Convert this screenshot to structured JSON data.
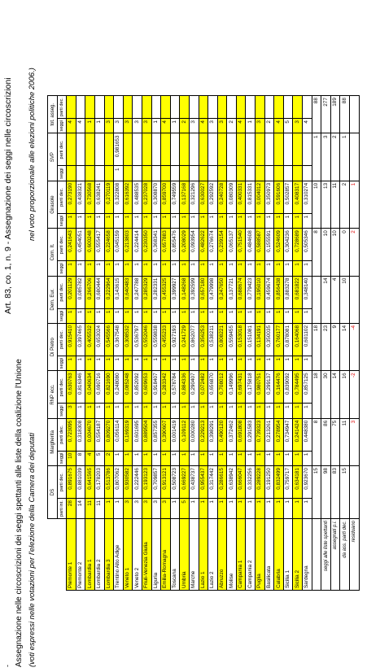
{
  "page": {
    "marker": "-",
    "title_left": "Assegnazione nelle circoscrizioni dei seggi spettanti alle liste della coalizione l'Unione",
    "subtitle_left": "(voti espressi nelle votazioni per l'elezione della Camera dei deputati",
    "title_right": "Art. 83, co. 1, n. 9 - Assegnazione dei seggi nelle circoscrizioni",
    "subtitle_right": "nel voto proporzionale alle elezioni politiche 2006.)"
  },
  "columns": [
    {
      "name": "DS",
      "sub1": "parti int.",
      "sub2": "parti dec."
    },
    {
      "name": "Margherita",
      "sub1": "seggi",
      "sub2": "parti dec."
    },
    {
      "name": "RNP ecc.",
      "sub1": "seggi",
      "sub2": "parti dec."
    },
    {
      "name": "Di Pietro",
      "sub1": "seggi",
      "sub2": "parti dec."
    },
    {
      "name": "Dem. Eur.",
      "sub1": "seggi",
      "sub2": "parti dec."
    },
    {
      "name": "Com. It.",
      "sub1": "seggi",
      "sub2": "parti dec."
    },
    {
      "name": "Girasole",
      "sub1": "seggi",
      "sub2": "parti dec."
    },
    {
      "name": "SVP",
      "sub1": "seggi",
      "sub2": "parti dec."
    },
    {
      "name": "tot. asseg.",
      "sub1": "seggi",
      "sub2": "parti dec."
    }
  ],
  "rows": [
    {
      "region": "Piemonte 1",
      "c": [
        [
          "28",
          "0,891675"
        ],
        [
          "10",
          "0,723095"
        ],
        [
          "3",
          "0,630763"
        ],
        [
          "1",
          "0,915410"
        ],
        [
          "1",
          "0,201129"
        ],
        [
          "1",
          "0,241643"
        ],
        [
          "1",
          "0,273190"
        ],
        [
          "",
          ""
        ],
        [
          "4",
          ""
        ]
      ]
    },
    {
      "region": "Piemonte 2",
      "c": [
        [
          "14",
          "0,881039"
        ],
        [
          "8",
          "0,318308"
        ],
        [
          "1",
          "0,816346"
        ],
        [
          "1",
          "0,397465"
        ],
        [
          "1",
          "0,085782"
        ],
        [
          "1",
          "0,454051"
        ],
        [
          "1",
          "0,438321"
        ],
        [
          "",
          ""
        ],
        [
          "4",
          ""
        ]
      ]
    },
    {
      "region": "Lombardia 1",
      "c": [
        [
          "11",
          "0,641565"
        ],
        [
          "4",
          "0,004670"
        ],
        [
          "1",
          "0,040634"
        ],
        [
          "1",
          "0,405532"
        ],
        [
          "1",
          "0,266706"
        ],
        [
          "1",
          "0,600248"
        ],
        [
          "1",
          "0,730568"
        ],
        [
          "",
          ""
        ],
        [
          "1",
          ""
        ]
      ]
    },
    {
      "region": "Lombardia 2",
      "c": [
        [
          "11",
          "0,178203"
        ],
        [
          "5",
          "0,554187"
        ],
        [
          "1",
          "0,690716"
        ],
        [
          "1",
          "0,653024"
        ],
        [
          "1",
          "0,680444"
        ],
        [
          "1",
          "0,555417"
        ],
        [
          "1",
          "0,638241"
        ],
        [
          "",
          ""
        ],
        [
          "1",
          ""
        ]
      ]
    },
    {
      "region": "Lombardia 3",
      "c": [
        [
          "1",
          "0,513786"
        ],
        [
          "2",
          "0,809270"
        ],
        [
          "1",
          "0,821690"
        ],
        [
          "1",
          "0,545566"
        ],
        [
          "1",
          "0,222964"
        ],
        [
          "1",
          "0,224658"
        ],
        [
          "1",
          "0,270119"
        ],
        [
          "",
          ""
        ],
        [
          "3",
          ""
        ]
      ]
    },
    {
      "region": "Trentino Alto Adige",
      "c": [
        [
          "1",
          "0,807062"
        ],
        [
          "1",
          "0,056114"
        ],
        [
          "1",
          "0,248080"
        ],
        [
          "1",
          "0,367548"
        ],
        [
          "1",
          "0,143615"
        ],
        [
          "1",
          "0,045159"
        ],
        [
          "1",
          "0,322808"
        ],
        [
          "1",
          "0,981653"
        ],
        [
          "3",
          ""
        ]
      ]
    },
    {
      "region": "Veneto 1",
      "c": [
        [
          "3",
          "0,930582"
        ],
        [
          "1",
          "0,169319"
        ],
        [
          "1",
          "0,085248"
        ],
        [
          "1",
          "0,308532"
        ],
        [
          "1",
          "0,640483"
        ],
        [
          "1",
          "0,213803"
        ],
        [
          "1",
          "0,616392"
        ],
        [
          "",
          ""
        ],
        [
          "3",
          ""
        ]
      ]
    },
    {
      "region": "Veneto 2",
      "c": [
        [
          "3",
          "0,222446"
        ],
        [
          "1",
          "0,601695"
        ],
        [
          "1",
          "0,852092"
        ],
        [
          "1",
          "0,536797"
        ],
        [
          "1",
          "0,247788"
        ],
        [
          "1",
          "0,224414"
        ],
        [
          "1",
          "0,488535"
        ],
        [
          "",
          ""
        ],
        [
          "3",
          ""
        ]
      ]
    },
    {
      "region": "Friuli-Venezia Giulia",
      "c": [
        [
          "3",
          "0,193123"
        ],
        [
          "1",
          "0,889504"
        ],
        [
          "1",
          "0,609653"
        ],
        [
          "1",
          "0,552046"
        ],
        [
          "1",
          "0,285329"
        ],
        [
          "1",
          "0,230350"
        ],
        [
          "1",
          "0,237028"
        ],
        [
          "",
          ""
        ],
        [
          "3",
          ""
        ]
      ]
    },
    {
      "region": "Liguria",
      "c": [
        [
          "3",
          "0,709857"
        ],
        [
          "1",
          "0,857355"
        ],
        [
          "1",
          "0,918407"
        ],
        [
          "1",
          "0,559838"
        ],
        [
          "1",
          "0,282331"
        ],
        [
          "1",
          "0,368341"
        ],
        [
          "1",
          "0,308870"
        ],
        [
          "",
          ""
        ],
        [
          "1",
          ""
        ]
      ]
    },
    {
      "region": "Emilia-Romagna",
      "c": [
        [
          "3",
          "0,913121"
        ],
        [
          "1",
          "0,390607"
        ],
        [
          "1",
          "0,283342"
        ],
        [
          "1",
          "0,455233"
        ],
        [
          "1",
          "0,455325"
        ],
        [
          "1",
          "0,657883"
        ],
        [
          "1",
          "0,859700"
        ],
        [
          "",
          ""
        ],
        [
          "4",
          ""
        ]
      ]
    },
    {
      "region": "Toscana",
      "c": [
        [
          "1",
          "0,508723"
        ],
        [
          "1",
          "0,001419"
        ],
        [
          "1",
          "0,578784"
        ],
        [
          "1",
          "0,927193"
        ],
        [
          "1",
          "0,399927"
        ],
        [
          "1",
          "0,855476"
        ],
        [
          "1",
          "0,749559"
        ],
        [
          "",
          ""
        ],
        [
          "1",
          ""
        ]
      ]
    },
    {
      "region": "Umbria",
      "c": [
        [
          "5",
          "0,669227"
        ],
        [
          "1",
          "0,109112"
        ],
        [
          "1",
          "0,884336"
        ],
        [
          "1",
          "0,241729"
        ],
        [
          "1",
          "0,148268"
        ],
        [
          "1",
          "0,208029"
        ],
        [
          "1",
          "0,137168"
        ],
        [
          "",
          ""
        ],
        [
          "2",
          ""
        ]
      ]
    },
    {
      "region": "Marche",
      "c": [
        [
          "1",
          "0,438737"
        ],
        [
          "1",
          "0,000280"
        ],
        [
          "1",
          "0,290407"
        ],
        [
          "1",
          "0,862077"
        ],
        [
          "1",
          "0,392599"
        ],
        [
          "1",
          "0,093954"
        ],
        [
          "1",
          "0,321296"
        ],
        [
          "",
          ""
        ],
        [
          "3",
          ""
        ]
      ]
    },
    {
      "region": "Lazio 1",
      "c": [
        [
          "1",
          "0,955437"
        ],
        [
          "1",
          "0,229213"
        ],
        [
          "1",
          "0,072482"
        ],
        [
          "1",
          "0,356253"
        ],
        [
          "1",
          "0,657180"
        ],
        [
          "1",
          "0,482622"
        ],
        [
          "1",
          "0,630027"
        ],
        [
          "",
          ""
        ],
        [
          "4",
          ""
        ]
      ]
    },
    {
      "region": "Lazio 2",
      "c": [
        [
          "1",
          "0,317442"
        ],
        [
          "1",
          "0,398291"
        ],
        [
          "1",
          "0,656870"
        ],
        [
          "1",
          "0,538211"
        ],
        [
          "1",
          "0,479998"
        ],
        [
          "1",
          "0,276674"
        ],
        [
          "1",
          "0,292592"
        ],
        [
          "",
          ""
        ],
        [
          "3",
          ""
        ]
      ]
    },
    {
      "region": "Abruzzo",
      "c": [
        [
          "1",
          "0,286615"
        ],
        [
          "1",
          "0,490120"
        ],
        [
          "1",
          "0,708012"
        ],
        [
          "1",
          "0,808221"
        ],
        [
          "1",
          "0,247650"
        ],
        [
          "1",
          "0,239154"
        ],
        [
          "1",
          "0,240728"
        ],
        [
          "",
          ""
        ],
        [
          "3",
          ""
        ]
      ]
    },
    {
      "region": "Molise",
      "c": [
        [
          "1",
          "0,638942"
        ],
        [
          "1",
          "0,372462"
        ],
        [
          "1",
          "0,149996"
        ],
        [
          "1",
          "0,559455"
        ],
        [
          "1",
          "0,137721"
        ],
        [
          "1",
          "0,065137"
        ],
        [
          "1",
          "0,080309"
        ],
        [
          "",
          ""
        ],
        [
          "2",
          ""
        ]
      ]
    },
    {
      "region": "Campania 1",
      "c": [
        [
          "1",
          "0,666047"
        ],
        [
          "1",
          "0,691808"
        ],
        [
          "1",
          "0,697431"
        ],
        [
          "1",
          "0,153018"
        ],
        [
          "1",
          "0,688674"
        ],
        [
          "1",
          "0,751540"
        ],
        [
          "1",
          "0,400331"
        ],
        [
          "",
          ""
        ],
        [
          "4",
          ""
        ]
      ]
    },
    {
      "region": "Campania 2",
      "c": [
        [
          "1",
          "0,332256"
        ],
        [
          "1",
          "0,291583"
        ],
        [
          "1",
          "0,175818"
        ],
        [
          "1",
          "0,151081"
        ],
        [
          "1",
          "0,779423"
        ],
        [
          "1",
          "0,484608"
        ],
        [
          "1",
          "0,815331"
        ],
        [
          "",
          ""
        ],
        [
          "1",
          ""
        ]
      ]
    },
    {
      "region": "Puglia",
      "c": [
        [
          "1",
          "0,289228"
        ],
        [
          "1",
          "0,739323"
        ],
        [
          "1",
          "0,980751"
        ],
        [
          "1",
          "0,134191"
        ],
        [
          "1",
          "0,195010"
        ],
        [
          "1",
          "0,588587"
        ],
        [
          "1",
          "0,004012"
        ],
        [
          "",
          ""
        ],
        [
          "3",
          ""
        ]
      ]
    },
    {
      "region": "Basilicata",
      "c": [
        [
          "1",
          "0,191250"
        ],
        [
          "1",
          "0,213261"
        ],
        [
          "1",
          "0,299137"
        ],
        [
          "1",
          "0,350035"
        ],
        [
          "1",
          "0,459674"
        ],
        [
          "1",
          "0,155591"
        ],
        [
          "1",
          "0,350973"
        ],
        [
          "",
          ""
        ],
        [
          "2",
          ""
        ]
      ]
    },
    {
      "region": "Calabria",
      "c": [
        [
          "1",
          "0,832499"
        ],
        [
          "1",
          "0,278954"
        ],
        [
          "1",
          "0,164476"
        ],
        [
          "1",
          "0,760177"
        ],
        [
          "1",
          "0,856438"
        ],
        [
          "1",
          "0,524609"
        ],
        [
          "1",
          "0,591606"
        ],
        [
          "",
          ""
        ],
        [
          "4",
          ""
        ]
      ]
    },
    {
      "region": "Sicilia 1",
      "c": [
        [
          "1",
          "0,759717"
        ],
        [
          "1",
          "0,734947"
        ],
        [
          "1",
          "0,839092"
        ],
        [
          "1",
          "0,878081"
        ],
        [
          "1",
          "0,883278"
        ],
        [
          "1",
          "0,304236"
        ],
        [
          "1",
          "0,502857"
        ],
        [
          "",
          ""
        ],
        [
          "5",
          ""
        ]
      ]
    },
    {
      "region": "Sicilia 2",
      "c": [
        [
          "1",
          "0,634181"
        ],
        [
          "1",
          "0,241424"
        ],
        [
          "1",
          "0,784495"
        ],
        [
          "1",
          "0,164068"
        ],
        [
          "1",
          "0,681822"
        ],
        [
          "1",
          "0,728689"
        ],
        [
          "1",
          "0,408317"
        ],
        [
          "",
          ""
        ],
        [
          "3",
          ""
        ]
      ]
    },
    {
      "region": "Sardegna",
      "c": [
        [
          "1",
          "0,923670"
        ],
        [
          "1",
          "0,448380"
        ],
        [
          "1",
          "0,857125"
        ],
        [
          "1",
          "0,601102"
        ],
        [
          "1",
          "0,348140"
        ],
        [
          "1",
          "0,505346"
        ],
        [
          "1",
          "0,310274"
        ],
        [
          "",
          ""
        ],
        [
          "4",
          ""
        ]
      ]
    }
  ],
  "summary": [
    {
      "label": "",
      "vals": [
        "15",
        "8",
        "18",
        "18",
        "",
        "8",
        "10",
        "1",
        "88"
      ],
      "red": []
    },
    {
      "label": "seggi alle liste spettanti",
      "vals": [
        "98",
        "86",
        "30",
        "23",
        "14",
        "10",
        "13",
        "3",
        "277"
      ],
      "red": []
    },
    {
      "label": "assegnati p.i.",
      "vals": [
        "83",
        "75",
        "14",
        "9",
        "4",
        "10",
        "11",
        "2",
        "189"
      ],
      "red": []
    },
    {
      "label": "da ass. parti dec.",
      "vals": [
        "15",
        "11",
        "16",
        "14",
        "10",
        "0",
        "2",
        "1",
        "88"
      ],
      "red": []
    },
    {
      "label": "residuano",
      "vals": [
        "",
        "3",
        "-2",
        "-4",
        "",
        "2",
        "1",
        "",
        ""
      ],
      "red": [
        1,
        2,
        3,
        5,
        6
      ]
    }
  ],
  "colors": {
    "highlight": "#ffff00",
    "red": "#e00000"
  }
}
